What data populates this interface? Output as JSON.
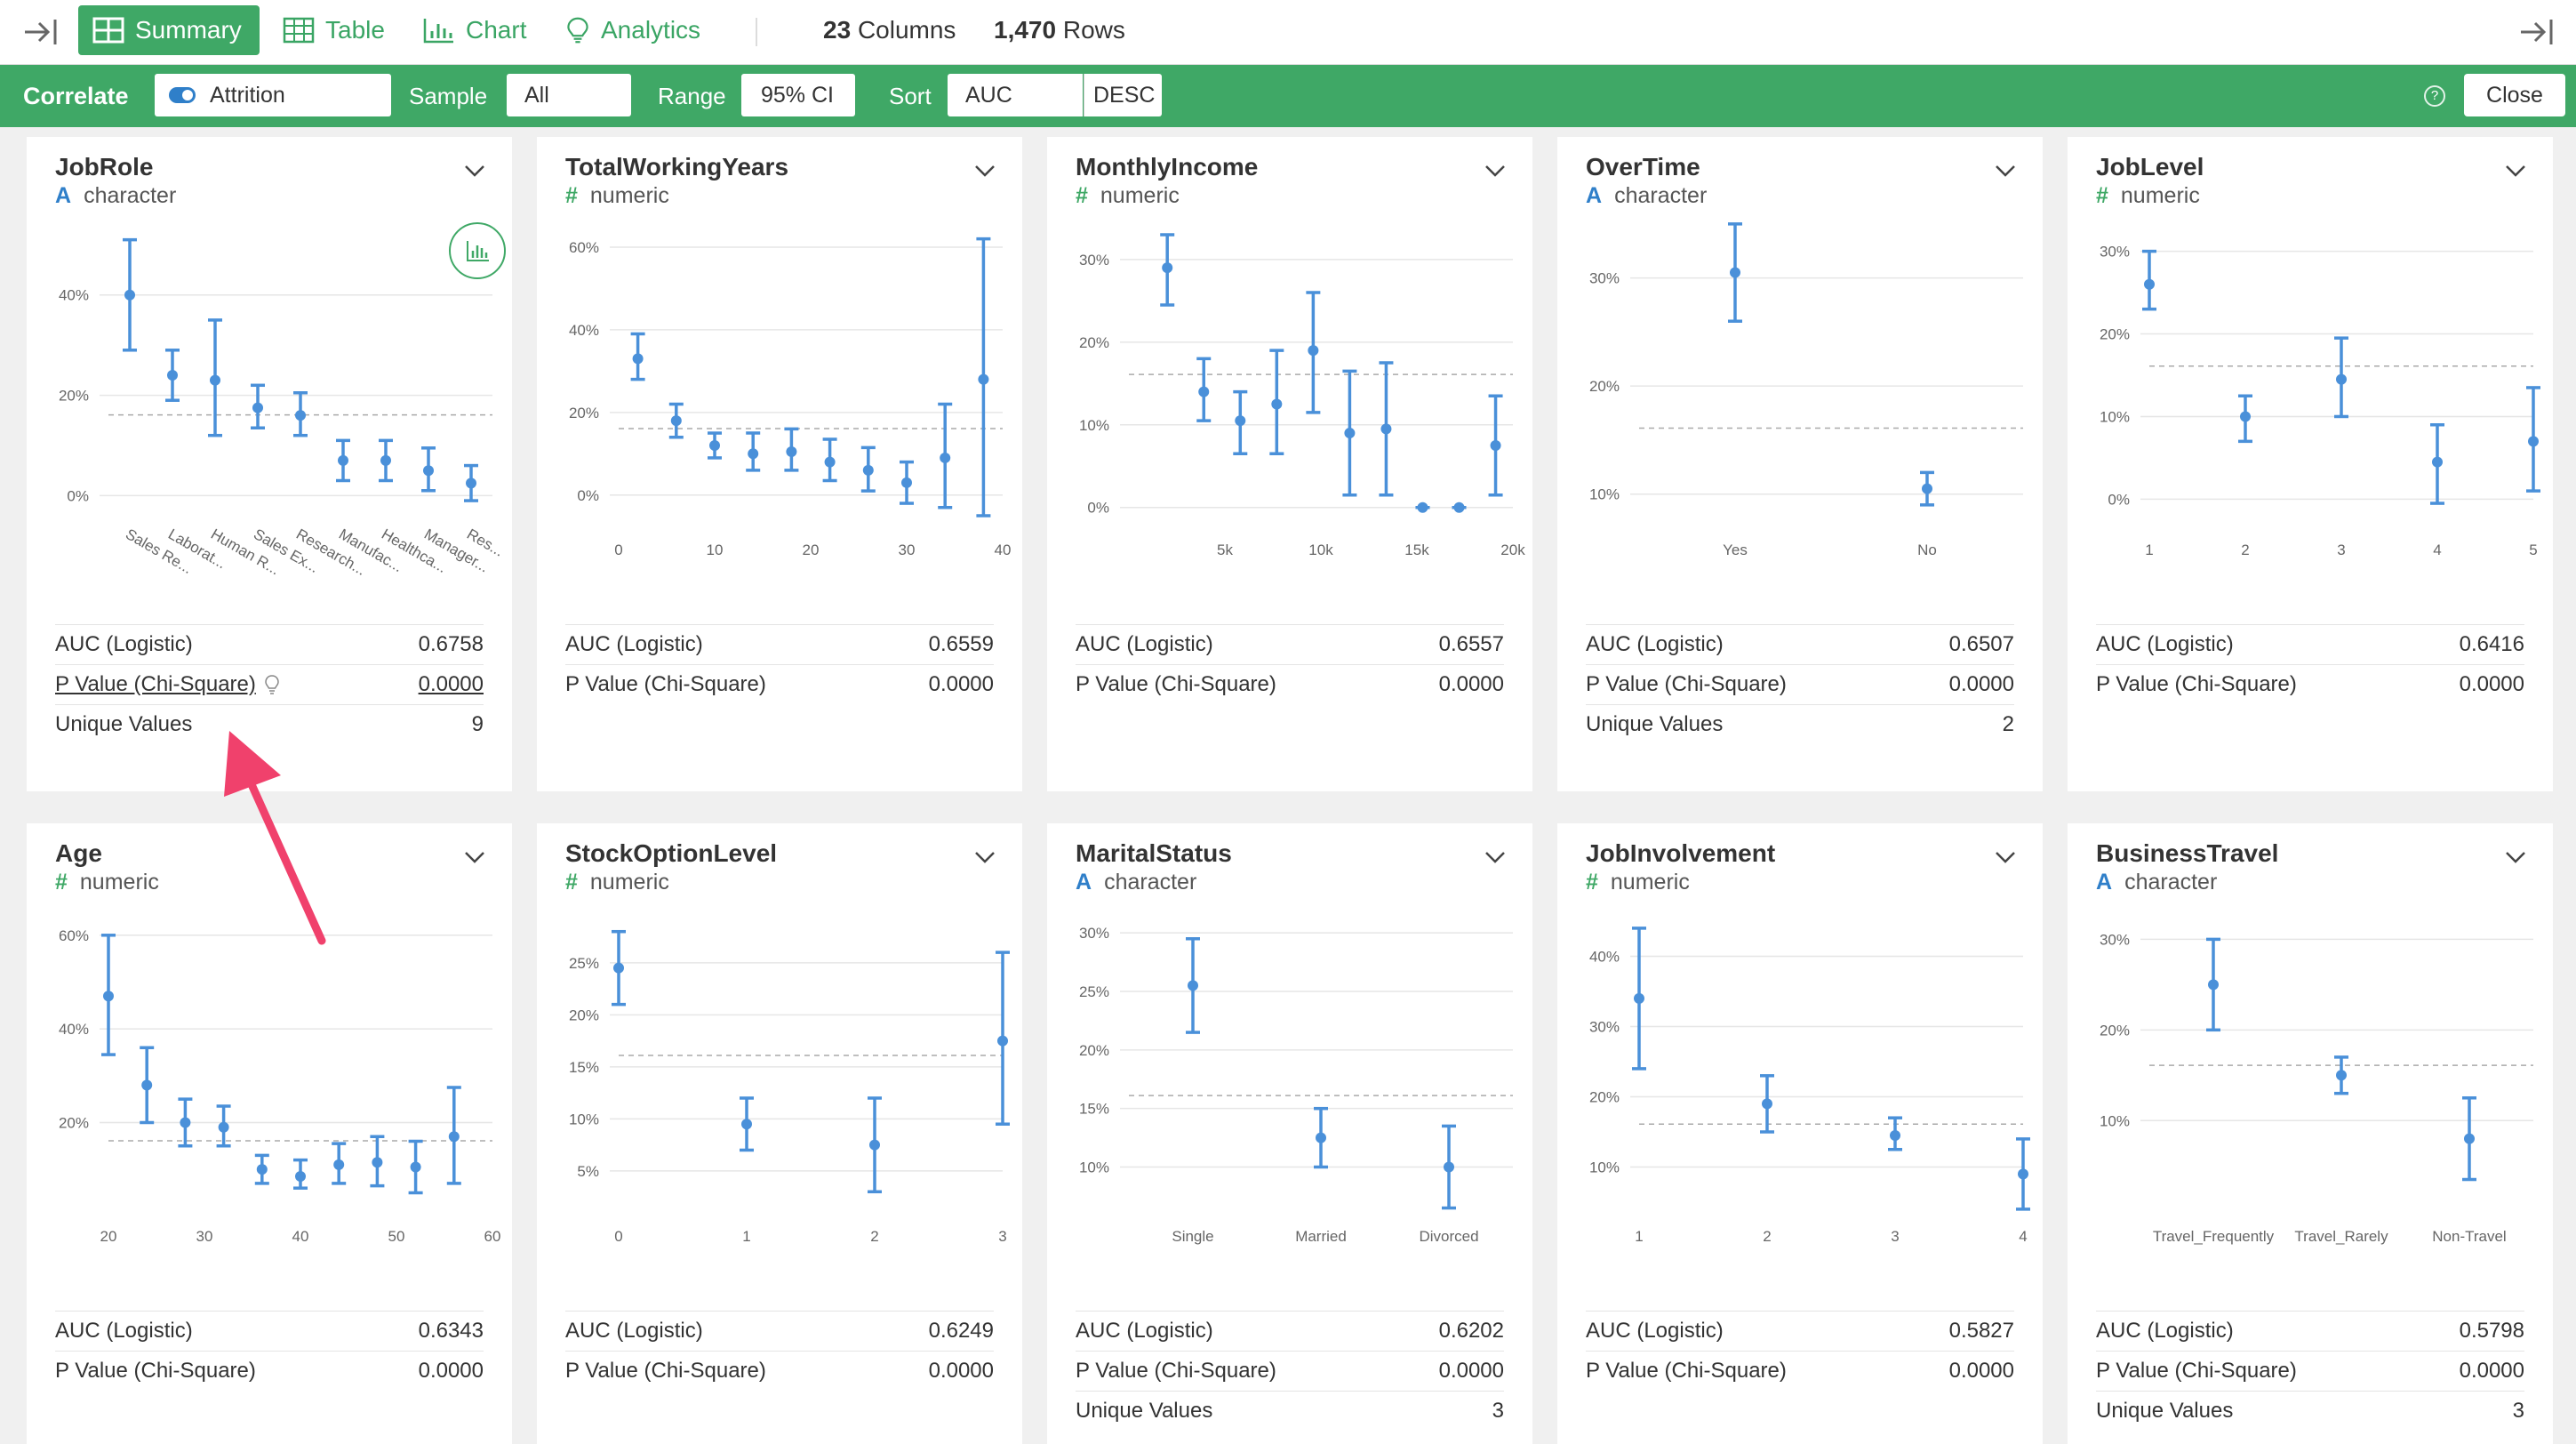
{
  "toolbar": {
    "views": [
      {
        "label": "Summary",
        "icon": "summary-grid-icon",
        "active": true
      },
      {
        "label": "Table",
        "icon": "table-icon",
        "active": false
      },
      {
        "label": "Chart",
        "icon": "bar-chart-icon",
        "active": false
      },
      {
        "label": "Analytics",
        "icon": "lightbulb-icon",
        "active": false
      }
    ],
    "columns_count": "23",
    "columns_label": "Columns",
    "rows_count": "1,470",
    "rows_label": "Rows"
  },
  "correlate_bar": {
    "title": "Correlate",
    "target": "Attrition",
    "sample_label": "Sample",
    "sample_value": "All",
    "range_label": "Range",
    "range_value": "95% CI",
    "sort_label": "Sort",
    "sort_value": "AUC",
    "sort_order": "DESC",
    "help": "?",
    "close_label": "Close"
  },
  "colors": {
    "green": "#3fa866",
    "blue": "#4a90d9",
    "character": "#2f7fc9",
    "numeric": "#3fa866",
    "annotation_arrow": "#f0416c"
  },
  "cards": [
    {
      "title": "JobRole",
      "type": "character",
      "type_icon": "A",
      "chart_data": {
        "type": "errorbar",
        "x_kind": "cat",
        "categories": [
          "Sales Re...",
          "Laborat...",
          "Human R...",
          "Sales Ex...",
          "Research...",
          "Manufac...",
          "Healthca...",
          "Manager...",
          "Res..."
        ],
        "x_ticks": [
          "Sales Re...",
          "Laborat...",
          "Human R...",
          "Sales Ex...",
          "Research...",
          "Manufac...",
          "Healthca...",
          "Manager...",
          "Res..."
        ],
        "y_ticks": [
          0,
          20,
          40
        ],
        "ylim": [
          -4,
          52
        ],
        "y_unit": "%",
        "xlim": [
          0.5,
          9.5
        ],
        "points": [
          {
            "x": 1,
            "y": 40,
            "lo": 29,
            "hi": 51
          },
          {
            "x": 2,
            "y": 24,
            "lo": 19,
            "hi": 29
          },
          {
            "x": 3,
            "y": 23,
            "lo": 12,
            "hi": 35
          },
          {
            "x": 4,
            "y": 17.5,
            "lo": 13.5,
            "hi": 22
          },
          {
            "x": 5,
            "y": 16,
            "lo": 12,
            "hi": 20.5
          },
          {
            "x": 6,
            "y": 7,
            "lo": 3,
            "hi": 11
          },
          {
            "x": 7,
            "y": 7,
            "lo": 3,
            "hi": 11
          },
          {
            "x": 8,
            "y": 5,
            "lo": 1,
            "hi": 9.5
          },
          {
            "x": 9,
            "y": 2.5,
            "lo": -1,
            "hi": 6
          }
        ],
        "baseline": 16.1
      },
      "metrics": [
        {
          "label": "AUC (Logistic)",
          "value": "0.6758"
        },
        {
          "label": "P Value (Chi-Square)",
          "value": "0.0000",
          "link": true
        },
        {
          "label": "Unique Values",
          "value": "9"
        }
      ]
    },
    {
      "title": "TotalWorkingYears",
      "type": "numeric",
      "type_icon": "#",
      "chart_data": {
        "type": "errorbar",
        "x_kind": "num",
        "x_ticks": [
          0,
          10,
          20,
          30,
          40
        ],
        "xlim": [
          0,
          40
        ],
        "y_ticks": [
          0,
          20,
          40,
          60
        ],
        "ylim": [
          -5,
          63
        ],
        "y_unit": "%",
        "points": [
          {
            "x": 2,
            "y": 33,
            "lo": 28,
            "hi": 39
          },
          {
            "x": 6,
            "y": 18,
            "lo": 14,
            "hi": 22
          },
          {
            "x": 10,
            "y": 12,
            "lo": 9,
            "hi": 15
          },
          {
            "x": 14,
            "y": 10,
            "lo": 6,
            "hi": 15
          },
          {
            "x": 18,
            "y": 10.5,
            "lo": 6,
            "hi": 16
          },
          {
            "x": 22,
            "y": 8,
            "lo": 3.5,
            "hi": 13.5
          },
          {
            "x": 26,
            "y": 6,
            "lo": 1,
            "hi": 11.5
          },
          {
            "x": 30,
            "y": 3,
            "lo": -2,
            "hi": 8
          },
          {
            "x": 34,
            "y": 9,
            "lo": -3,
            "hi": 22
          },
          {
            "x": 38,
            "y": 28,
            "lo": -5,
            "hi": 62
          }
        ],
        "baseline": 16.1
      },
      "metrics": [
        {
          "label": "AUC (Logistic)",
          "value": "0.6559"
        },
        {
          "label": "P Value (Chi-Square)",
          "value": "0.0000"
        }
      ]
    },
    {
      "title": "MonthlyIncome",
      "type": "numeric",
      "type_icon": "#",
      "chart_data": {
        "type": "errorbar",
        "x_kind": "num",
        "x_ticks": [
          "5k",
          "10k",
          "15k",
          "20k"
        ],
        "x_tick_values": [
          5000,
          10000,
          15000,
          20000
        ],
        "xlim": [
          0,
          20000
        ],
        "y_ticks": [
          0,
          10,
          20,
          30
        ],
        "ylim": [
          -1,
          33
        ],
        "y_unit": "%",
        "points": [
          {
            "x": 2000,
            "y": 29,
            "lo": 24.5,
            "hi": 33
          },
          {
            "x": 3900,
            "y": 14,
            "lo": 10.5,
            "hi": 18
          },
          {
            "x": 5800,
            "y": 10.5,
            "lo": 6.5,
            "hi": 14
          },
          {
            "x": 7700,
            "y": 12.5,
            "lo": 6.5,
            "hi": 19
          },
          {
            "x": 9600,
            "y": 19,
            "lo": 11.5,
            "hi": 26
          },
          {
            "x": 11500,
            "y": 9,
            "lo": 1.5,
            "hi": 16.5
          },
          {
            "x": 13400,
            "y": 9.5,
            "lo": 1.5,
            "hi": 17.5
          },
          {
            "x": 15300,
            "y": 0,
            "lo": 0,
            "hi": 0
          },
          {
            "x": 17200,
            "y": 0,
            "lo": 0,
            "hi": 0
          },
          {
            "x": 19100,
            "y": 7.5,
            "lo": 1.5,
            "hi": 13.5
          }
        ],
        "baseline": 16.1
      },
      "metrics": [
        {
          "label": "AUC (Logistic)",
          "value": "0.6557"
        },
        {
          "label": "P Value (Chi-Square)",
          "value": "0.0000"
        }
      ]
    },
    {
      "title": "OverTime",
      "type": "character",
      "type_icon": "A",
      "chart_data": {
        "type": "errorbar",
        "x_kind": "cat",
        "categories": [
          "Yes",
          "No"
        ],
        "x_ticks": [
          "Yes",
          "No"
        ],
        "xlim": [
          0.5,
          2.5
        ],
        "y_ticks": [
          10,
          20,
          30
        ],
        "ylim": [
          8,
          34
        ],
        "y_unit": "%",
        "points": [
          {
            "x": 1,
            "y": 30.5,
            "lo": 26,
            "hi": 35
          },
          {
            "x": 2,
            "y": 10.5,
            "lo": 9,
            "hi": 12
          }
        ],
        "baseline": 16.1
      },
      "metrics": [
        {
          "label": "AUC (Logistic)",
          "value": "0.6507"
        },
        {
          "label": "P Value (Chi-Square)",
          "value": "0.0000"
        },
        {
          "label": "Unique Values",
          "value": "2"
        }
      ]
    },
    {
      "title": "JobLevel",
      "type": "numeric",
      "type_icon": "#",
      "chart_data": {
        "type": "errorbar",
        "x_kind": "num",
        "x_ticks": [
          1,
          2,
          3,
          4,
          5
        ],
        "xlim": [
          1,
          5
        ],
        "y_ticks": [
          0,
          10,
          20,
          30
        ],
        "ylim": [
          -2,
          32
        ],
        "y_unit": "%",
        "points": [
          {
            "x": 1,
            "y": 26,
            "lo": 23,
            "hi": 30
          },
          {
            "x": 2,
            "y": 10,
            "lo": 7,
            "hi": 12.5
          },
          {
            "x": 3,
            "y": 14.5,
            "lo": 10,
            "hi": 19.5
          },
          {
            "x": 4,
            "y": 4.5,
            "lo": -0.5,
            "hi": 9
          },
          {
            "x": 5,
            "y": 7,
            "lo": 1,
            "hi": 13.5
          }
        ],
        "baseline": 16.1
      },
      "metrics": [
        {
          "label": "AUC (Logistic)",
          "value": "0.6416"
        },
        {
          "label": "P Value (Chi-Square)",
          "value": "0.0000"
        }
      ]
    },
    {
      "title": "Age",
      "type": "numeric",
      "type_icon": "#",
      "chart_data": {
        "type": "errorbar",
        "x_kind": "num",
        "x_ticks": [
          20,
          30,
          40,
          50,
          60
        ],
        "xlim": [
          20,
          60
        ],
        "y_ticks": [
          20,
          40,
          60
        ],
        "ylim": [
          3,
          63
        ],
        "y_unit": "%",
        "points": [
          {
            "x": 20,
            "y": 47,
            "lo": 34.5,
            "hi": 60
          },
          {
            "x": 24,
            "y": 28,
            "lo": 20,
            "hi": 36
          },
          {
            "x": 28,
            "y": 20,
            "lo": 15,
            "hi": 25
          },
          {
            "x": 32,
            "y": 19,
            "lo": 15,
            "hi": 23.5
          },
          {
            "x": 36,
            "y": 10,
            "lo": 7,
            "hi": 13
          },
          {
            "x": 40,
            "y": 8.5,
            "lo": 6,
            "hi": 12
          },
          {
            "x": 44,
            "y": 11,
            "lo": 7,
            "hi": 15.5
          },
          {
            "x": 48,
            "y": 11.5,
            "lo": 6.5,
            "hi": 17
          },
          {
            "x": 52,
            "y": 10.5,
            "lo": 5,
            "hi": 16
          },
          {
            "x": 56,
            "y": 17,
            "lo": 7,
            "hi": 27.5
          }
        ],
        "baseline": 16.1
      },
      "metrics": [
        {
          "label": "AUC (Logistic)",
          "value": "0.6343"
        },
        {
          "label": "P Value (Chi-Square)",
          "value": "0.0000"
        }
      ]
    },
    {
      "title": "StockOptionLevel",
      "type": "numeric",
      "type_icon": "#",
      "chart_data": {
        "type": "errorbar",
        "x_kind": "num",
        "x_ticks": [
          0,
          1,
          2,
          3
        ],
        "xlim": [
          0,
          3
        ],
        "y_ticks": [
          5,
          10,
          15,
          20,
          25
        ],
        "ylim": [
          2,
          29
        ],
        "y_unit": "%",
        "points": [
          {
            "x": 0,
            "y": 24.5,
            "lo": 21,
            "hi": 28
          },
          {
            "x": 1,
            "y": 9.5,
            "lo": 7,
            "hi": 12
          },
          {
            "x": 2,
            "y": 7.5,
            "lo": 3,
            "hi": 12
          },
          {
            "x": 3,
            "y": 17.5,
            "lo": 9.5,
            "hi": 26
          }
        ],
        "baseline": 16.1
      },
      "metrics": [
        {
          "label": "AUC (Logistic)",
          "value": "0.6249"
        },
        {
          "label": "P Value (Chi-Square)",
          "value": "0.0000"
        }
      ]
    },
    {
      "title": "MaritalStatus",
      "type": "character",
      "type_icon": "A",
      "chart_data": {
        "type": "errorbar",
        "x_kind": "cat",
        "categories": [
          "Single",
          "Married",
          "Divorced"
        ],
        "x_ticks": [
          "Single",
          "Married",
          "Divorced"
        ],
        "xlim": [
          0.5,
          3.5
        ],
        "y_ticks": [
          10,
          15,
          20,
          25,
          30
        ],
        "ylim": [
          7,
          31
        ],
        "y_unit": "%",
        "points": [
          {
            "x": 1,
            "y": 25.5,
            "lo": 21.5,
            "hi": 29.5
          },
          {
            "x": 2,
            "y": 12.5,
            "lo": 10,
            "hi": 15
          },
          {
            "x": 3,
            "y": 10,
            "lo": 6.5,
            "hi": 13.5
          }
        ],
        "baseline": 16.1
      },
      "metrics": [
        {
          "label": "AUC (Logistic)",
          "value": "0.6202"
        },
        {
          "label": "P Value (Chi-Square)",
          "value": "0.0000"
        },
        {
          "label": "Unique Values",
          "value": "3"
        }
      ]
    },
    {
      "title": "JobInvolvement",
      "type": "numeric",
      "type_icon": "#",
      "chart_data": {
        "type": "errorbar",
        "x_kind": "num",
        "x_ticks": [
          1,
          2,
          3,
          4
        ],
        "xlim": [
          1,
          4
        ],
        "y_ticks": [
          10,
          20,
          30,
          40
        ],
        "ylim": [
          5,
          45
        ],
        "y_unit": "%",
        "points": [
          {
            "x": 1,
            "y": 34,
            "lo": 24,
            "hi": 44
          },
          {
            "x": 2,
            "y": 19,
            "lo": 15,
            "hi": 23
          },
          {
            "x": 3,
            "y": 14.5,
            "lo": 12.5,
            "hi": 17
          },
          {
            "x": 4,
            "y": 9,
            "lo": 4,
            "hi": 14
          }
        ],
        "baseline": 16.1
      },
      "metrics": [
        {
          "label": "AUC (Logistic)",
          "value": "0.5827"
        },
        {
          "label": "P Value (Chi-Square)",
          "value": "0.0000"
        }
      ]
    },
    {
      "title": "BusinessTravel",
      "type": "character",
      "type_icon": "A",
      "chart_data": {
        "type": "errorbar",
        "x_kind": "cat",
        "categories": [
          "Travel_Frequently",
          "Travel_Rarely",
          "Non-Travel"
        ],
        "x_ticks": [
          "Travel_Frequently",
          "Travel_Rarely",
          "Non-Travel"
        ],
        "xlim": [
          0.5,
          3.5
        ],
        "y_ticks": [
          10,
          20,
          30
        ],
        "ylim": [
          1,
          32
        ],
        "y_unit": "%",
        "points": [
          {
            "x": 1,
            "y": 25,
            "lo": 20,
            "hi": 30
          },
          {
            "x": 2,
            "y": 15,
            "lo": 13,
            "hi": 17
          },
          {
            "x": 3,
            "y": 8,
            "lo": 3.5,
            "hi": 12.5
          }
        ],
        "baseline": 16.1
      },
      "metrics": [
        {
          "label": "AUC (Logistic)",
          "value": "0.5798"
        },
        {
          "label": "P Value (Chi-Square)",
          "value": "0.0000"
        },
        {
          "label": "Unique Values",
          "value": "3"
        }
      ]
    }
  ]
}
